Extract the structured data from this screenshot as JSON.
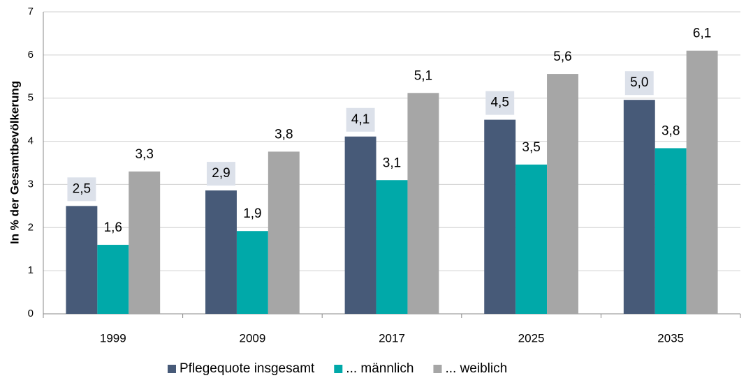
{
  "chart_data": {
    "type": "bar",
    "y_axis_label": "In % der Gesamtbevölkerung",
    "categories": [
      "1999",
      "2009",
      "2017",
      "2025",
      "2035"
    ],
    "series": [
      {
        "name": "Pflegequote insgesamt",
        "color": "#475a78",
        "values": [
          2.5,
          2.86,
          4.11,
          4.5,
          4.96
        ],
        "value_labels": [
          "2,5",
          "2,9",
          "4,1",
          "4,5",
          "5,0"
        ]
      },
      {
        "name": "... männlich",
        "color": "#00a9a9",
        "values": [
          1.6,
          1.92,
          3.1,
          3.46,
          3.84
        ],
        "value_labels": [
          "1,6",
          "1,9",
          "3,1",
          "3,5",
          "3,8"
        ]
      },
      {
        "name": "...  weiblich",
        "color": "#a6a6a6",
        "values": [
          3.3,
          3.76,
          5.12,
          5.56,
          6.1
        ],
        "value_labels": [
          "3,3",
          "3,8",
          "5,1",
          "5,6",
          "6,1"
        ]
      }
    ],
    "ylim": [
      0,
      7
    ],
    "yticks": [
      0,
      1,
      2,
      3,
      4,
      5,
      6,
      7
    ],
    "grid": true,
    "legend": "bottom"
  }
}
